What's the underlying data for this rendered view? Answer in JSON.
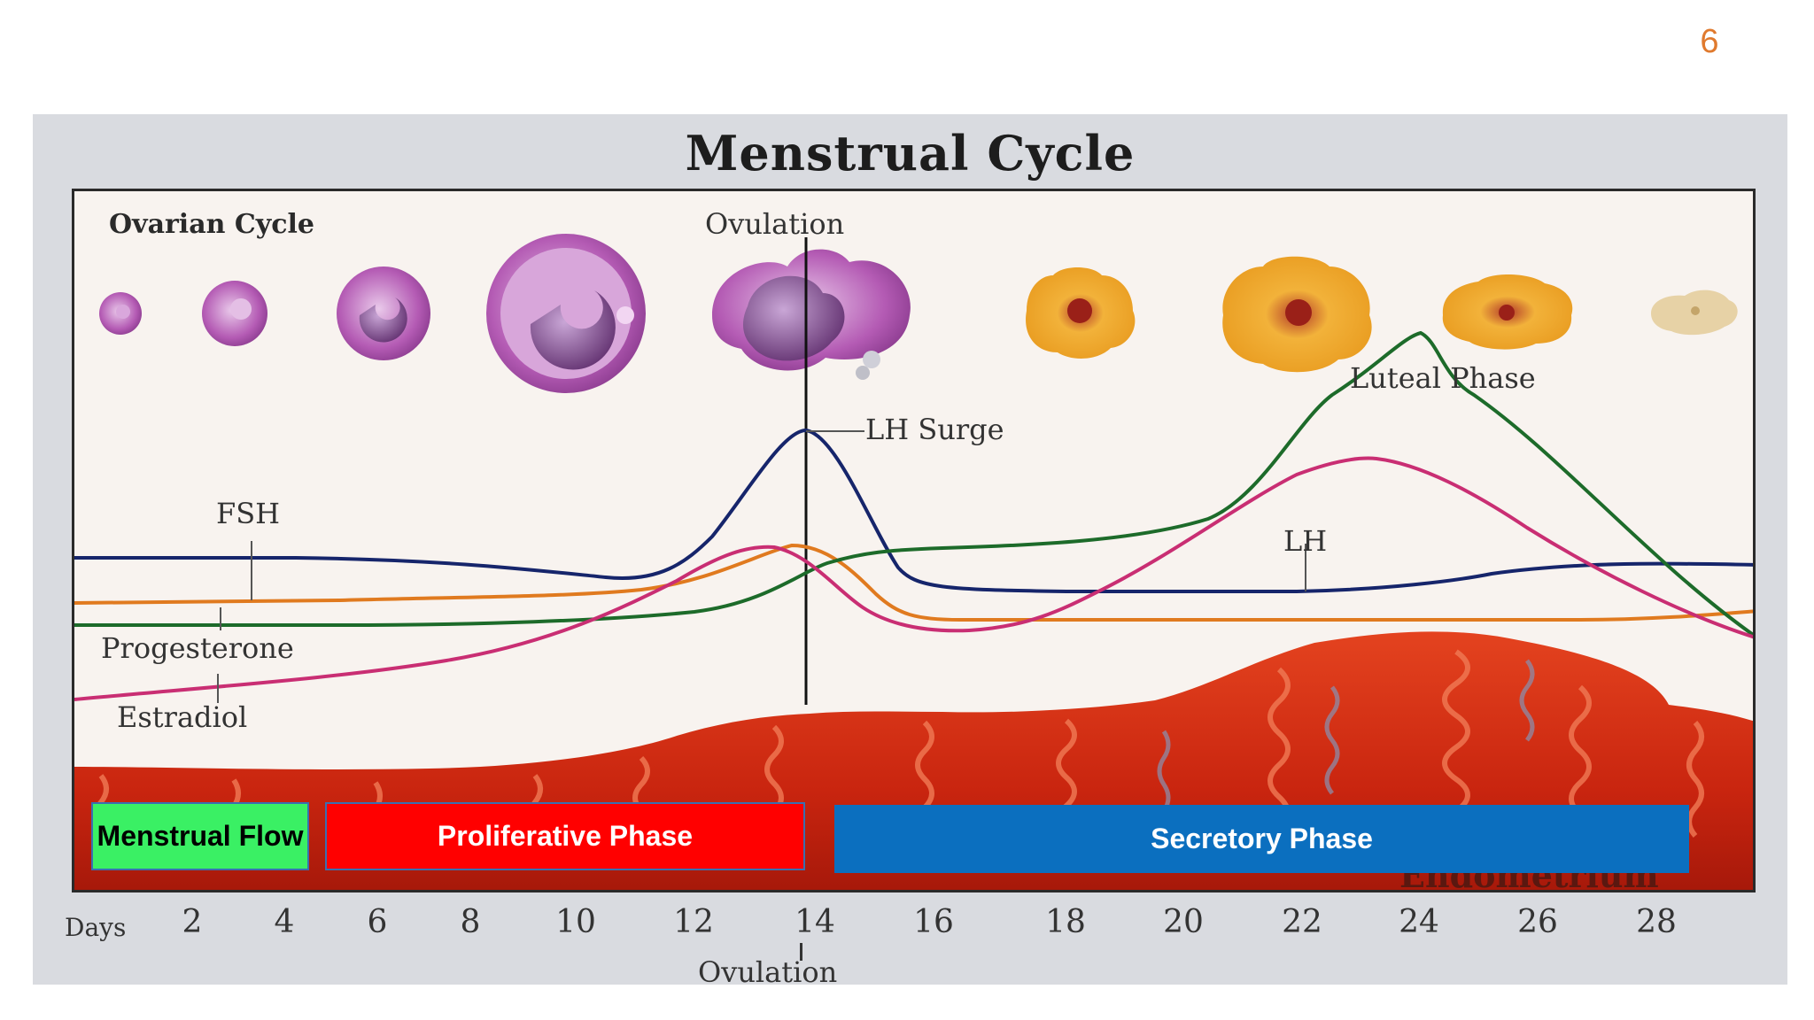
{
  "slide": {
    "number": "6"
  },
  "figure": {
    "title": "Menstrual Cycle",
    "labels": {
      "ovarian_cycle": "Ovarian Cycle",
      "ovulation_top": "Ovulation",
      "luteal_phase": "Luteal Phase",
      "lh_surge": "LH Surge",
      "fsh": "FSH",
      "lh": "LH",
      "progesterone": "Progesterone",
      "estradiol": "Estradiol",
      "endometrium": "Endometrium",
      "ovulation_bottom": "Ovulation",
      "days": "Days"
    },
    "phases": {
      "menstrual": "Menstrual Flow",
      "proliferative": "Proliferative Phase",
      "secretory": "Secretory Phase"
    },
    "days": [
      "2",
      "4",
      "6",
      "8",
      "10",
      "12",
      "14",
      "16",
      "18",
      "20",
      "22",
      "24",
      "26",
      "28"
    ],
    "colors": {
      "fsh": "#16256b",
      "lh": "#c92e73",
      "progesterone": "#1d6b2a",
      "estradiol": "#e07a1f",
      "menstrual_box": "#3af064",
      "proliferative_box": "#ff0000",
      "secretory_box": "#0b6fbf",
      "endometrium": "#cf2a16"
    }
  }
}
